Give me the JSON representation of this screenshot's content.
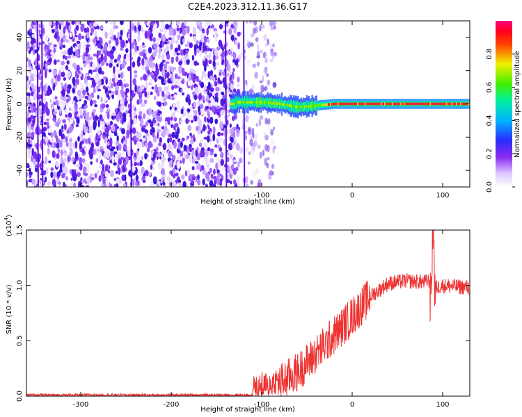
{
  "title": "C2E4.2023.312.11.36.G17",
  "colors": {
    "snr_line": "#ee3333",
    "axis": "#000000",
    "spectrogram_scatter": "#7a2ff0",
    "spectrogram_center": "#ff2020"
  },
  "chart_data": [
    {
      "type": "heatmap",
      "xlabel": "Height of straight line (km)",
      "ylabel": "Frequency (Hz)",
      "xlim": [
        -360,
        130
      ],
      "ylim": [
        -50,
        50
      ],
      "x_ticks": [
        -300,
        -200,
        -100,
        0,
        100
      ],
      "y_ticks": [
        -40,
        -20,
        0,
        20,
        40
      ],
      "colorbar": {
        "label": "Normalized spectral amplitude",
        "range": [
          0,
          1
        ],
        "ticks": [
          "0.0",
          "0.2",
          "0.4",
          "0.6",
          "0.8"
        ],
        "colormap": "rainbow (white → purple → blue → cyan → green → yellow → red → magenta)"
      },
      "regions": [
        {
          "x_from": -360,
          "x_to": -105,
          "description_value": "broadband noise over full frequency range"
        },
        {
          "x_from": -105,
          "x_to": 130,
          "description_value": "narrow carrier near 0 Hz"
        }
      ],
      "carrier_center_hz": [
        {
          "x": -130,
          "y": 1
        },
        {
          "x": -100,
          "y": 1
        },
        {
          "x": -80,
          "y": 0
        },
        {
          "x": -60,
          "y": -2
        },
        {
          "x": -40,
          "y": -1
        },
        {
          "x": -20,
          "y": 0
        },
        {
          "x": 0,
          "y": 0
        },
        {
          "x": 50,
          "y": 0
        },
        {
          "x": 100,
          "y": 0
        },
        {
          "x": 130,
          "y": 0
        }
      ]
    },
    {
      "type": "line",
      "xlabel": "Height of straight line (km)",
      "ylabel": "SNR (10 * v/v)",
      "y_multiplier": "(x10",
      "y_multiplier_exp": "4",
      "xlim": [
        -360,
        130
      ],
      "ylim": [
        0,
        1.5
      ],
      "x_ticks": [
        -300,
        -200,
        -100,
        0,
        100
      ],
      "y_ticks": [
        "0.0",
        "0.5",
        "1.0",
        "1.5"
      ],
      "series": [
        {
          "x": [
            -360,
            -200,
            -110,
            -100,
            -80,
            -60,
            -40,
            -20,
            0,
            20,
            40,
            60,
            80,
            88,
            90,
            92,
            100,
            130
          ],
          "y": [
            0.01,
            0.01,
            0.01,
            0.04,
            0.12,
            0.22,
            0.38,
            0.55,
            0.72,
            0.9,
            1.02,
            1.04,
            1.03,
            1.05,
            1.45,
            0.98,
            1.0,
            0.98
          ]
        }
      ]
    }
  ]
}
